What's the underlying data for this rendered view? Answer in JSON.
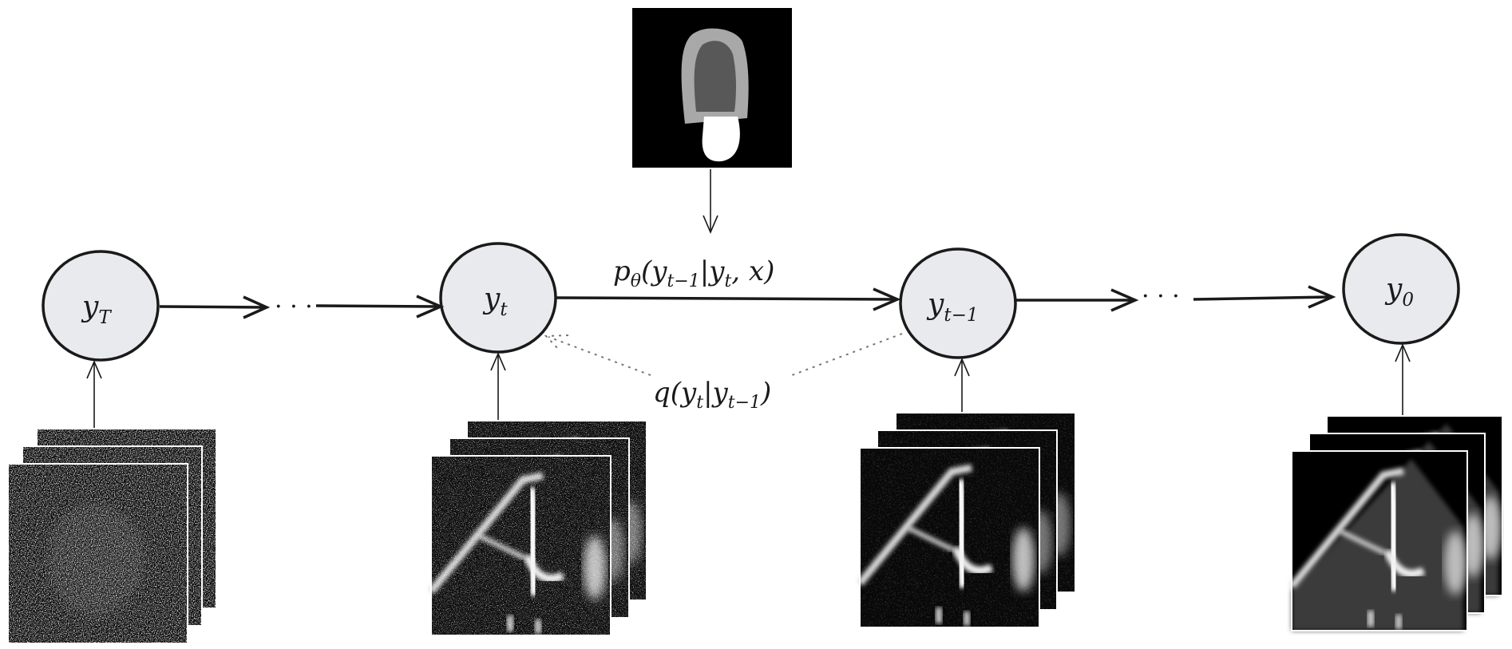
{
  "nodes": [
    {
      "id": "yT",
      "base": "y",
      "sub": "T"
    },
    {
      "id": "yt",
      "base": "y",
      "sub": "t"
    },
    {
      "id": "yt1",
      "base": "y",
      "sub": "t−1"
    },
    {
      "id": "y0",
      "base": "y",
      "sub": "0"
    }
  ],
  "ellipsis": "· · ·",
  "reverse_label": {
    "p": "p",
    "theta": "θ",
    "open": "(y",
    "sub1": "t−1",
    "bar": "|y",
    "sub2": "t",
    "tail": ", x)"
  },
  "forward_label": {
    "q": "q(y",
    "sub1": "t",
    "bar": "|y",
    "sub2": "t−1",
    "close": ")"
  },
  "colors": {
    "node_fill": "#e8eaed",
    "stroke": "#1a1a1a",
    "dotted": "#777777",
    "mask_light": "#a8a8a8",
    "mask_dark": "#585858",
    "mask_stem": "#ffffff"
  }
}
